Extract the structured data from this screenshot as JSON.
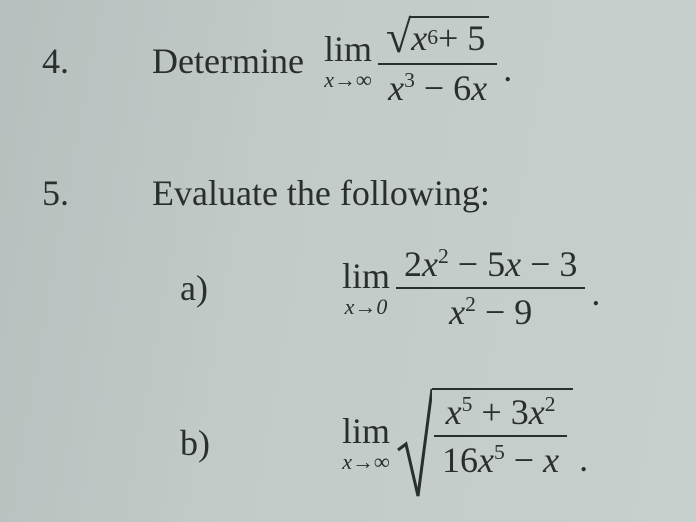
{
  "font": {
    "family": "Times New Roman",
    "base_size_pt": 28,
    "color": "#2a2e2d"
  },
  "background_color": "#c3cbc9",
  "problems": [
    {
      "number": "4.",
      "prompt": "Determine",
      "limit": {
        "word": "lim",
        "subscript": "x→∞"
      },
      "expression": {
        "type": "fraction",
        "numerator": {
          "type": "radical",
          "radicand_html": "<span class='ital'>x</span><sup>6</sup> + 5"
        },
        "denominator_html": "<span class='ital'>x</span><sup>3</sup> − 6<span class='ital'>x</span>"
      },
      "trailing": "."
    },
    {
      "number": "5.",
      "prompt": "Evaluate the following",
      "trailing": ":",
      "parts": [
        {
          "label": "a)",
          "limit": {
            "word": "lim",
            "subscript": "x→0"
          },
          "expression": {
            "type": "fraction",
            "numerator_html": "2<span class='ital'>x</span><sup>2</sup> − 5<span class='ital'>x</span> − 3",
            "denominator_html": "<span class='ital'>x</span><sup>2</sup> − 9"
          },
          "trailing": "."
        },
        {
          "label": "b)",
          "limit": {
            "word": "lim",
            "subscript": "x→∞"
          },
          "expression": {
            "type": "radical_of_fraction",
            "numerator_html": "<span class='ital'>x</span><sup>5</sup> + 3<span class='ital'>x</span><sup>2</sup>",
            "denominator_html": "16<span class='ital'>x</span><sup>5</sup> − <span class='ital'>x</span>"
          },
          "trailing": "."
        }
      ]
    }
  ]
}
